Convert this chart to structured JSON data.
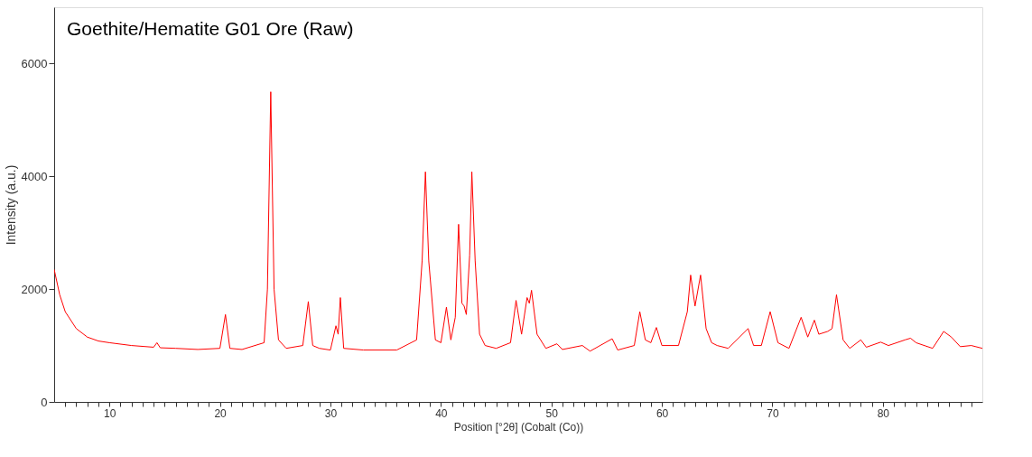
{
  "chart_data": {
    "type": "line",
    "title": "Goethite/Hematite G01 Ore (Raw)",
    "xlabel": "Position [°2θ] (Cobalt (Co))",
    "ylabel": "Intensity (a.u.)",
    "x": [
      5,
      5.5,
      6,
      7,
      8,
      9,
      10,
      12,
      14,
      14.3,
      14.6,
      16,
      18,
      20,
      20.5,
      20.9,
      22,
      24,
      24.3,
      24.6,
      24.9,
      25.3,
      26,
      27.5,
      28,
      28.4,
      29,
      30,
      30.5,
      30.7,
      30.9,
      31.2,
      33,
      36,
      37.8,
      38.3,
      38.6,
      38.9,
      39.5,
      40,
      40.5,
      40.9,
      41.3,
      41.6,
      41.9,
      42.1,
      42.3,
      42.6,
      42.8,
      43.1,
      43.5,
      44,
      45,
      46.3,
      46.8,
      47.3,
      47.8,
      48,
      48.2,
      48.7,
      49.5,
      50.5,
      51,
      52.8,
      53.5,
      55.5,
      56,
      57.5,
      58,
      58.5,
      59,
      59.5,
      60,
      61.5,
      62.3,
      62.6,
      63,
      63.5,
      64,
      64.5,
      65,
      66,
      67.8,
      68.3,
      69,
      69.8,
      70.5,
      71.5,
      72.6,
      73.2,
      73.8,
      74.2,
      75,
      75.4,
      75.8,
      76.4,
      77,
      78,
      78.5,
      79.8,
      80.5,
      82,
      82.5,
      83,
      84.5,
      85.5,
      86.2,
      87,
      88,
      89
    ],
    "series": [
      {
        "color": "#ff0000",
        "values": [
          2350,
          1900,
          1600,
          1300,
          1150,
          1080,
          1050,
          1000,
          970,
          1050,
          960,
          950,
          930,
          950,
          1550,
          950,
          930,
          1050,
          2000,
          5500,
          2000,
          1100,
          950,
          1000,
          1780,
          1000,
          950,
          920,
          1350,
          1200,
          1850,
          950,
          920,
          920,
          1100,
          2500,
          4080,
          2500,
          1100,
          1050,
          1680,
          1100,
          1500,
          3150,
          1750,
          1700,
          1550,
          2600,
          4080,
          2500,
          1200,
          1000,
          950,
          1050,
          1800,
          1200,
          1850,
          1750,
          1980,
          1200,
          950,
          1030,
          930,
          1000,
          900,
          1120,
          920,
          1000,
          1600,
          1100,
          1050,
          1320,
          1000,
          1000,
          1600,
          2250,
          1700,
          2250,
          1300,
          1050,
          1000,
          950,
          1300,
          1000,
          1000,
          1600,
          1050,
          950,
          1500,
          1150,
          1450,
          1200,
          1250,
          1300,
          1900,
          1100,
          950,
          1100,
          970,
          1060,
          1000,
          1100,
          1130,
          1050,
          950,
          1250,
          1150,
          980,
          1000,
          950
        ]
      }
    ],
    "xlim": [
      5,
      89
    ],
    "xticks": [
      {
        "value": 6,
        "label": null
      },
      {
        "value": 7,
        "label": null
      },
      {
        "value": 8,
        "label": null
      },
      {
        "value": 9,
        "label": null
      },
      10,
      {
        "value": 11,
        "label": null
      },
      {
        "value": 12,
        "label": null
      },
      {
        "value": 13,
        "label": null
      },
      {
        "value": 14,
        "label": null
      },
      {
        "value": 15,
        "label": null
      },
      {
        "value": 16,
        "label": null
      },
      {
        "value": 17,
        "label": null
      },
      {
        "value": 18,
        "label": null
      },
      {
        "value": 19,
        "label": null
      },
      20,
      {
        "value": 21,
        "label": null
      },
      {
        "value": 22,
        "label": null
      },
      {
        "value": 23,
        "label": null
      },
      {
        "value": 24,
        "label": null
      },
      {
        "value": 25,
        "label": null
      },
      {
        "value": 26,
        "label": null
      },
      {
        "value": 27,
        "label": null
      },
      {
        "value": 28,
        "label": null
      },
      {
        "value": 29,
        "label": null
      },
      30,
      {
        "value": 31,
        "label": null
      },
      {
        "value": 32,
        "label": null
      },
      {
        "value": 33,
        "label": null
      },
      {
        "value": 34,
        "label": null
      },
      {
        "value": 35,
        "label": null
      },
      {
        "value": 36,
        "label": null
      },
      {
        "value": 37,
        "label": null
      },
      {
        "value": 38,
        "label": null
      },
      {
        "value": 39,
        "label": null
      },
      40,
      {
        "value": 41,
        "label": null
      },
      {
        "value": 42,
        "label": null
      },
      {
        "value": 43,
        "label": null
      },
      {
        "value": 44,
        "label": null
      },
      {
        "value": 45,
        "label": null
      },
      {
        "value": 46,
        "label": null
      },
      {
        "value": 47,
        "label": null
      },
      {
        "value": 48,
        "label": null
      },
      {
        "value": 49,
        "label": null
      },
      50,
      {
        "value": 51,
        "label": null
      },
      {
        "value": 52,
        "label": null
      },
      {
        "value": 53,
        "label": null
      },
      {
        "value": 54,
        "label": null
      },
      {
        "value": 55,
        "label": null
      },
      {
        "value": 56,
        "label": null
      },
      {
        "value": 57,
        "label": null
      },
      {
        "value": 58,
        "label": null
      },
      {
        "value": 59,
        "label": null
      },
      60,
      {
        "value": 61,
        "label": null
      },
      {
        "value": 62,
        "label": null
      },
      {
        "value": 63,
        "label": null
      },
      {
        "value": 64,
        "label": null
      },
      {
        "value": 65,
        "label": null
      },
      {
        "value": 66,
        "label": null
      },
      {
        "value": 67,
        "label": null
      },
      {
        "value": 68,
        "label": null
      },
      {
        "value": 69,
        "label": null
      },
      70,
      {
        "value": 71,
        "label": null
      },
      {
        "value": 72,
        "label": null
      },
      {
        "value": 73,
        "label": null
      },
      {
        "value": 74,
        "label": null
      },
      {
        "value": 75,
        "label": null
      },
      {
        "value": 76,
        "label": null
      },
      {
        "value": 77,
        "label": null
      },
      {
        "value": 78,
        "label": null
      },
      {
        "value": 79,
        "label": null
      },
      80,
      {
        "value": 81,
        "label": null
      },
      {
        "value": 82,
        "label": null
      },
      {
        "value": 83,
        "label": null
      },
      {
        "value": 84,
        "label": null
      },
      {
        "value": 85,
        "label": null
      },
      {
        "value": 86,
        "label": null
      },
      {
        "value": 87,
        "label": null
      },
      {
        "value": 88,
        "label": null
      }
    ],
    "ylim": [
      0,
      7000
    ],
    "yticks": [
      0,
      2000,
      4000,
      6000
    ],
    "grid": false,
    "legend": false,
    "marker": "none",
    "line_style": "solid"
  }
}
